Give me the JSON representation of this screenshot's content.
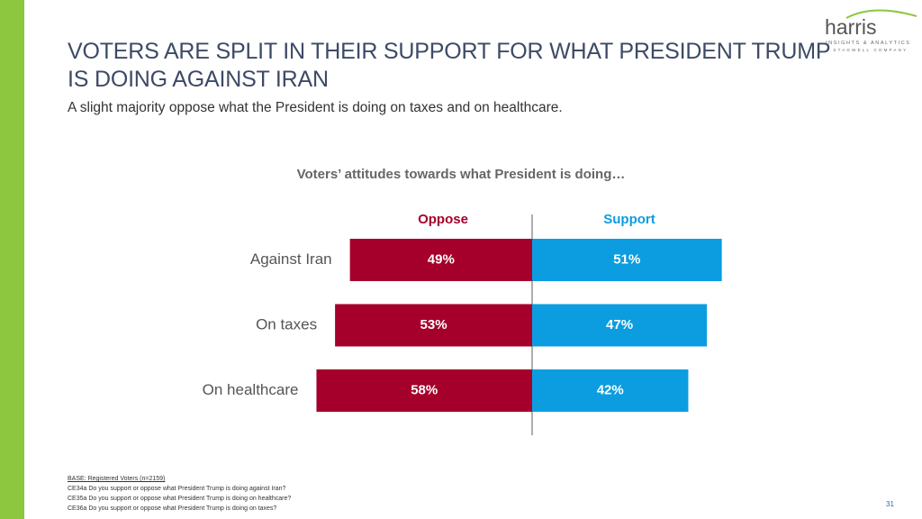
{
  "logo": {
    "name": "harris",
    "tagline": "INSIGHTS & ANALYTICS",
    "parent": "A STAGWELL COMPANY"
  },
  "chart_data": {
    "type": "bar",
    "orientation": "diverging",
    "title": "VOTERS ARE SPLIT IN THEIR SUPPORT FOR WHAT PRESIDENT TRUMP IS DOING AGAINST IRAN",
    "subtitle": "A slight majority oppose what the President is doing on taxes and on healthcare.",
    "chart_title": "Voters’ attitudes towards what President is doing…",
    "categories": [
      "Against Iran",
      "On taxes",
      "On healthcare"
    ],
    "series": [
      {
        "name": "Oppose",
        "color": "#a5002b",
        "values": [
          49,
          53,
          58
        ],
        "value_labels": [
          "49%",
          "53%",
          "58%"
        ]
      },
      {
        "name": "Support",
        "color": "#0b9de0",
        "values": [
          51,
          47,
          42
        ],
        "value_labels": [
          "51%",
          "47%",
          "42%"
        ]
      }
    ]
  },
  "footnotes": {
    "base": "BASE: Registered Voters (n=2159)",
    "notes": [
      "CE34a Do you support or oppose what President Trump is doing against Iran?",
      "CE35a Do you support or oppose what President Trump is doing on healthcare?",
      "CE36a Do you support or oppose what President Trump is doing on taxes?"
    ]
  },
  "page_number": "31"
}
